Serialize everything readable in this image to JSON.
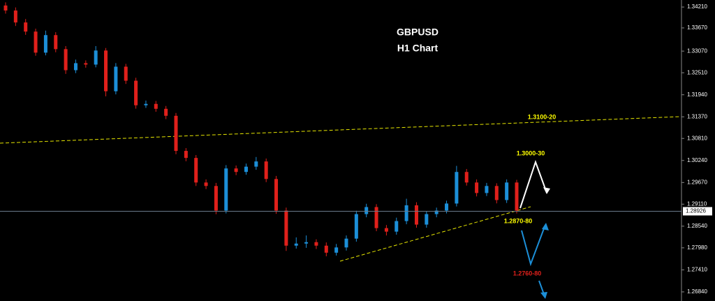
{
  "chart_data": {
    "type": "candlestick",
    "title": "GBPUSD",
    "subtitle": "H1 Chart",
    "up_color": "#1c8fd8",
    "down_color": "#e0201b",
    "ylim": [
      1.26604,
      1.34392
    ],
    "yticks": [
      {
        "value": 1.3421,
        "label": "1.34210"
      },
      {
        "value": 1.3367,
        "label": "1.33670"
      },
      {
        "value": 1.3307,
        "label": "1.33070"
      },
      {
        "value": 1.3251,
        "label": "1.32510"
      },
      {
        "value": 1.3194,
        "label": "1.31940"
      },
      {
        "value": 1.3137,
        "label": "1.31370"
      },
      {
        "value": 1.3081,
        "label": "1.30810"
      },
      {
        "value": 1.3024,
        "label": "1.30240"
      },
      {
        "value": 1.2967,
        "label": "1.29670"
      },
      {
        "value": 1.2911,
        "label": "1.29110"
      },
      {
        "value": 1.2854,
        "label": "1.28540"
      },
      {
        "value": 1.2798,
        "label": "1.27980"
      },
      {
        "value": 1.2741,
        "label": "1.27410"
      },
      {
        "value": 1.2684,
        "label": "1.26840"
      }
    ],
    "current_price": 1.28926,
    "open": [
      1.3425,
      1.3412,
      1.33811,
      1.33575,
      1.3303,
      1.33484,
      1.33121,
      1.32576,
      1.32758,
      1.32721,
      1.33085,
      1.32031,
      1.32667,
      1.32304,
      1.31668,
      1.31704,
      1.31577,
      1.31396,
      1.30488,
      1.30306,
      1.2967,
      1.2958,
      1.28944,
      1.30034,
      1.29943,
      1.3008,
      1.30215,
      1.29761,
      1.28944,
      1.28036,
      1.2809,
      1.28127,
      1.28036,
      1.27854,
      1.2799,
      1.28218,
      1.28853,
      1.29035,
      1.2849,
      1.28399,
      1.28672,
      1.2908,
      1.28581,
      1.28853,
      1.28944,
      1.29126,
      1.29943,
      1.2967,
      1.29398,
      1.2958,
      1.29216,
      1.2967
    ],
    "high": [
      1.3433,
      1.342,
      1.339,
      1.3365,
      1.336,
      1.3356,
      1.332,
      1.3285,
      1.3283,
      1.332,
      1.3315,
      1.3276,
      1.3274,
      1.3238,
      1.3179,
      1.3178,
      1.3165,
      1.3147,
      1.3056,
      1.3038,
      1.2975,
      1.2966,
      1.3012,
      1.3011,
      1.3016,
      1.3033,
      1.3029,
      1.2984,
      1.2902,
      1.2825,
      1.283,
      1.282,
      1.2812,
      1.2808,
      1.283,
      1.2894,
      1.2912,
      1.2911,
      1.2857,
      1.2876,
      1.2925,
      1.2916,
      1.2893,
      1.2902,
      1.292,
      1.301,
      1.3002,
      1.2975,
      1.2966,
      1.2965,
      1.2975,
      1.2974
    ],
    "low": [
      1.3404,
      1.3372,
      1.3349,
      1.3295,
      1.3296,
      1.3304,
      1.3248,
      1.325,
      1.3264,
      1.3265,
      1.319,
      1.3195,
      1.3222,
      1.3158,
      1.316,
      1.315,
      1.3131,
      1.304,
      1.3022,
      1.2958,
      1.295,
      1.2885,
      1.2887,
      1.2986,
      1.2987,
      1.3,
      1.2968,
      1.2886,
      1.279,
      1.2796,
      1.2798,
      1.2795,
      1.2776,
      1.2778,
      1.2791,
      1.2814,
      1.2877,
      1.2841,
      1.283,
      1.2832,
      1.2859,
      1.285,
      1.285,
      1.2877,
      1.2887,
      1.2905,
      1.2959,
      1.2931,
      1.2932,
      1.2913,
      1.2914,
      1.2887
    ],
    "close": [
      1.3412,
      1.33811,
      1.33575,
      1.3303,
      1.33484,
      1.33121,
      1.32576,
      1.32758,
      1.32721,
      1.33085,
      1.32031,
      1.32667,
      1.32304,
      1.31668,
      1.31704,
      1.31577,
      1.31396,
      1.30488,
      1.30306,
      1.2967,
      1.2958,
      1.28944,
      1.30034,
      1.29943,
      1.3008,
      1.30215,
      1.29761,
      1.28944,
      1.28036,
      1.2809,
      1.28127,
      1.28036,
      1.27854,
      1.2799,
      1.28218,
      1.28853,
      1.29035,
      1.2849,
      1.28399,
      1.28672,
      1.2908,
      1.28581,
      1.28853,
      1.28944,
      1.29126,
      1.29943,
      1.2967,
      1.29398,
      1.2958,
      1.29216,
      1.2967,
      1.28944
    ],
    "annotations": [
      "1.3100-20",
      "1.3000-30",
      "1.2870-80",
      "1.2760-80"
    ]
  }
}
